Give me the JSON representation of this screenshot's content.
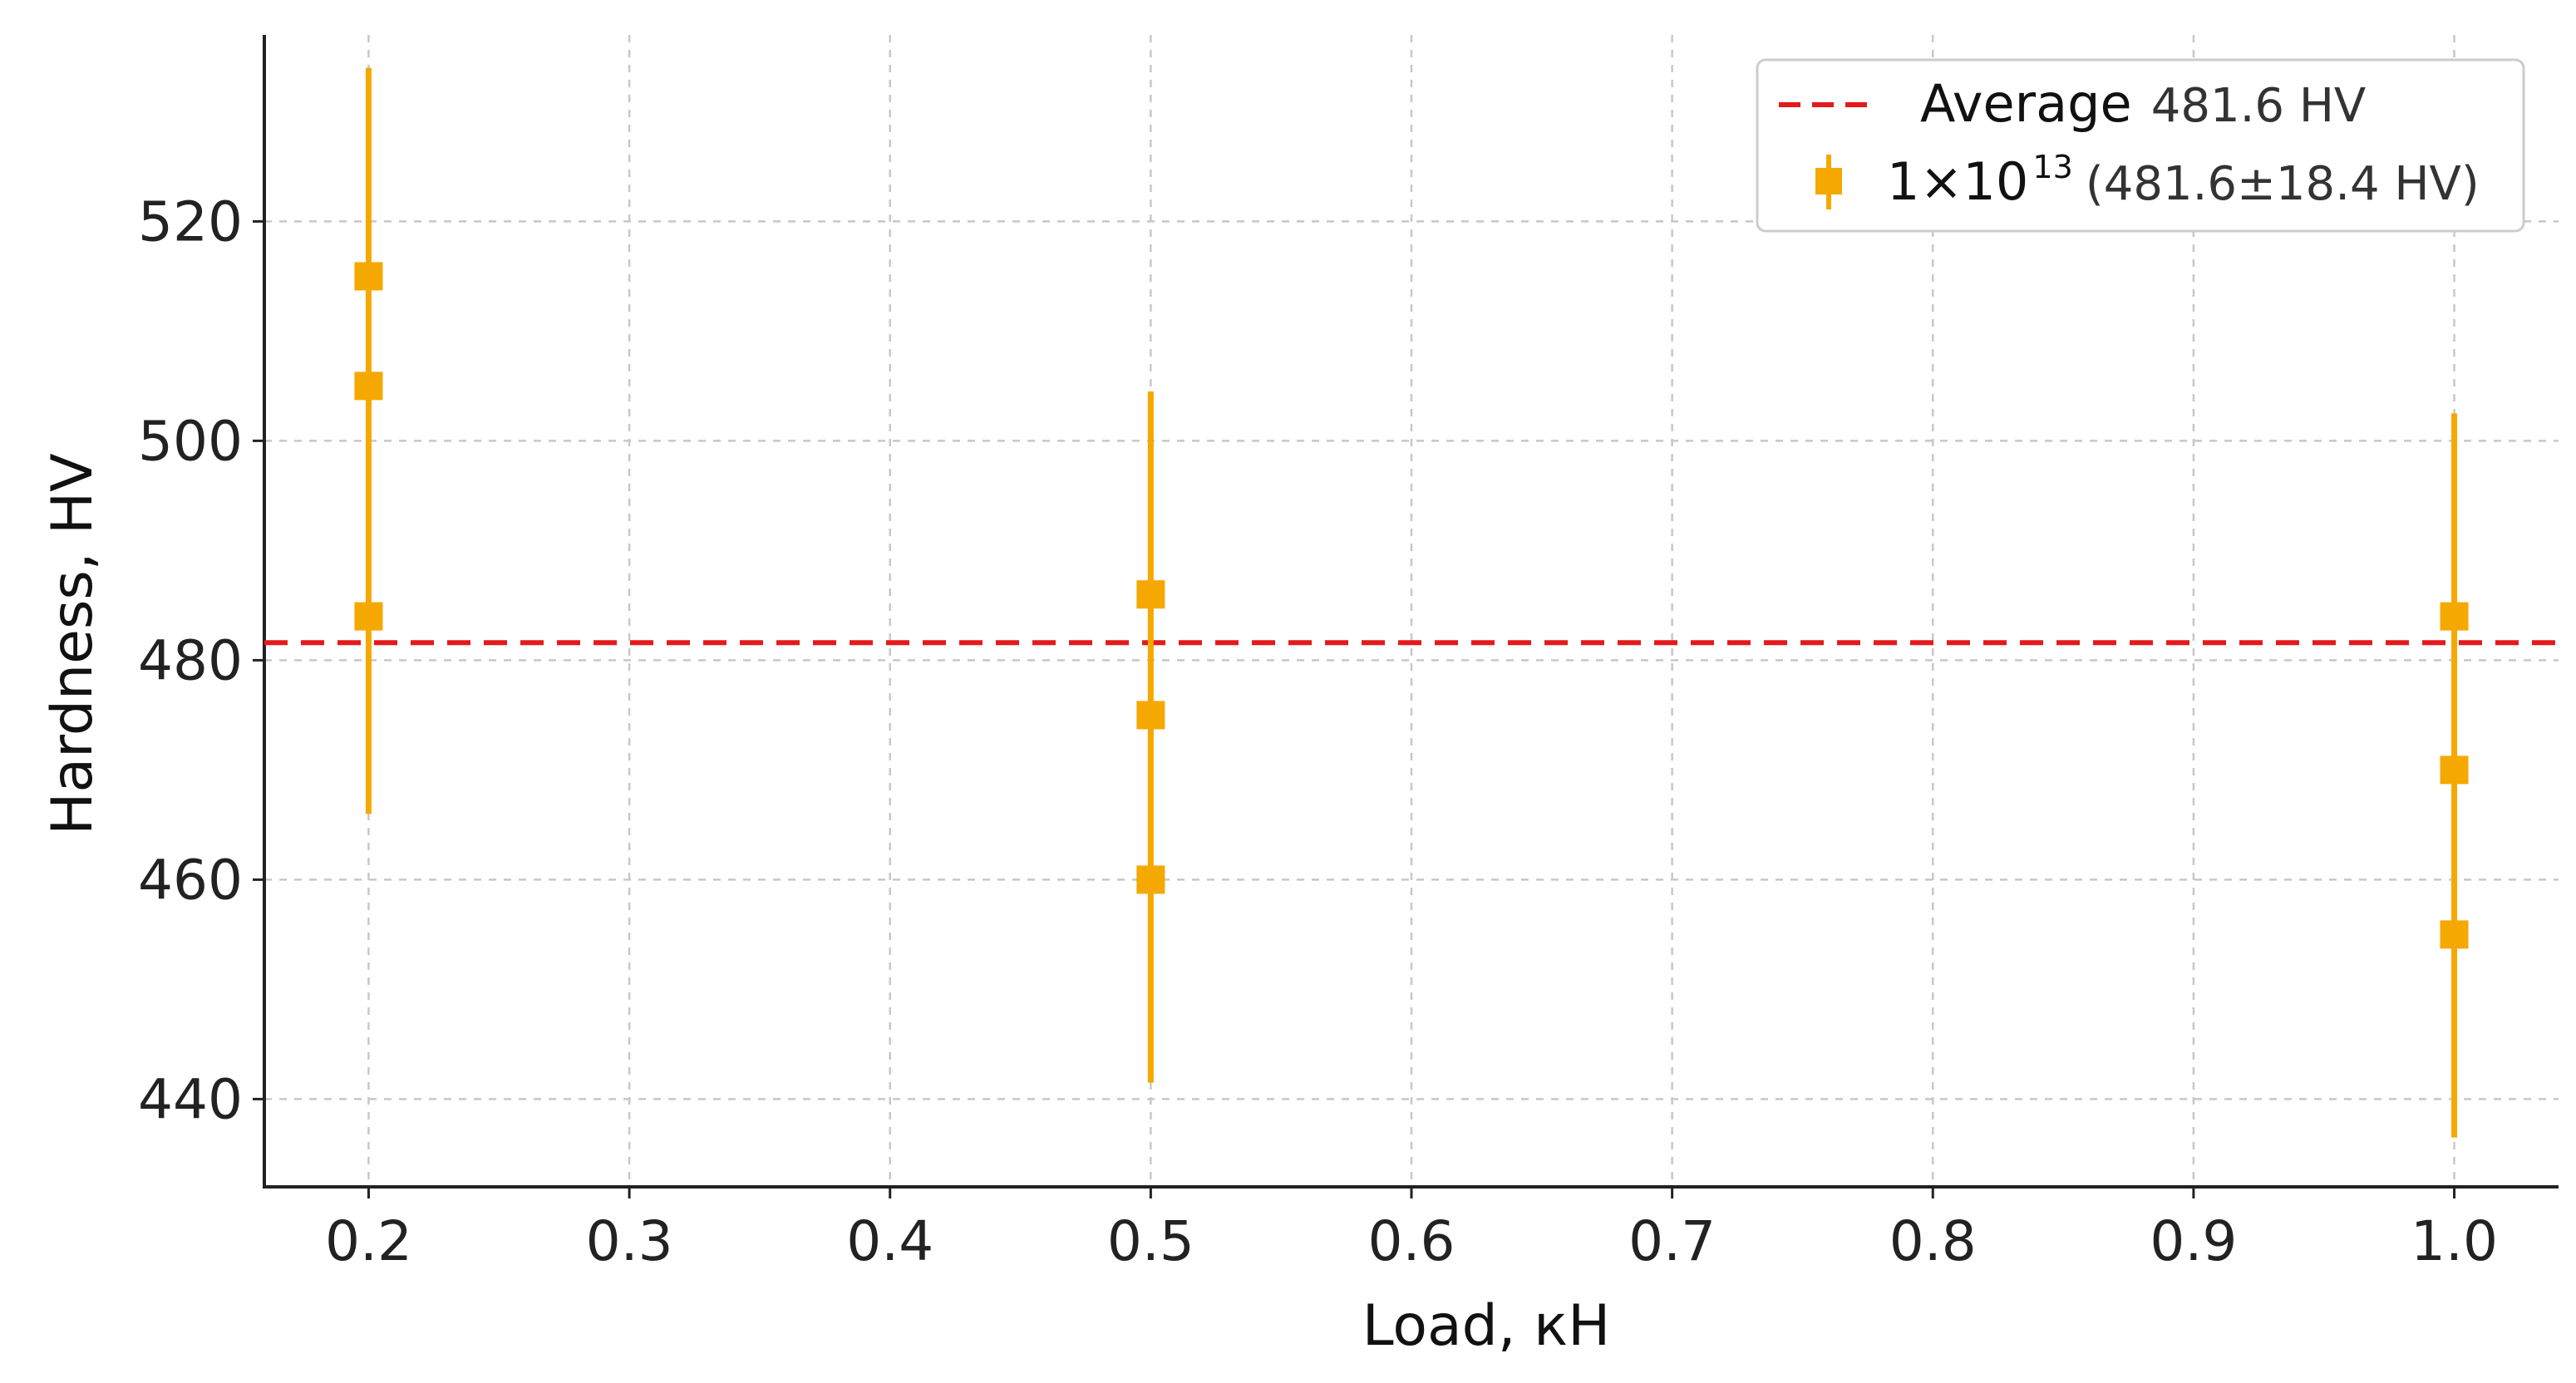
{
  "chart_data": {
    "type": "scatter",
    "xlabel": "Load, кН",
    "ylabel": "Hardness, HV",
    "xlim": [
      0.16,
      1.04
    ],
    "ylim": [
      432,
      537
    ],
    "xticks": [
      0.2,
      0.3,
      0.4,
      0.5,
      0.6,
      0.7,
      0.8,
      0.9,
      1.0
    ],
    "xtick_labels": [
      "0.2",
      "0.3",
      "0.4",
      "0.5",
      "0.6",
      "0.7",
      "0.8",
      "0.9",
      "1.0"
    ],
    "yticks": [
      440,
      460,
      480,
      500,
      520
    ],
    "ytick_labels": [
      "440",
      "460",
      "480",
      "500",
      "520"
    ],
    "grid": true,
    "legend_position": "top-right",
    "reference_line": {
      "label": "Average",
      "value_label": "481.6 HV",
      "y": 481.6,
      "color": "#e31a1c",
      "style": "dashed"
    },
    "series": [
      {
        "name_main": "1×10",
        "name_sup": "13",
        "name_detail": "(481.6±18.4 HV)",
        "color": "#f5a800",
        "marker": "square",
        "points": [
          {
            "x": 0.2,
            "y": 515
          },
          {
            "x": 0.2,
            "y": 505
          },
          {
            "x": 0.2,
            "y": 484
          },
          {
            "x": 0.5,
            "y": 486
          },
          {
            "x": 0.5,
            "y": 475
          },
          {
            "x": 0.5,
            "y": 460
          },
          {
            "x": 1.0,
            "y": 484
          },
          {
            "x": 1.0,
            "y": 470
          },
          {
            "x": 1.0,
            "y": 455
          }
        ],
        "error_bars": [
          {
            "x": 0.2,
            "low": 466,
            "high": 534
          },
          {
            "x": 0.5,
            "low": 441.5,
            "high": 504.5
          },
          {
            "x": 1.0,
            "low": 436.5,
            "high": 502.5
          }
        ]
      }
    ]
  }
}
